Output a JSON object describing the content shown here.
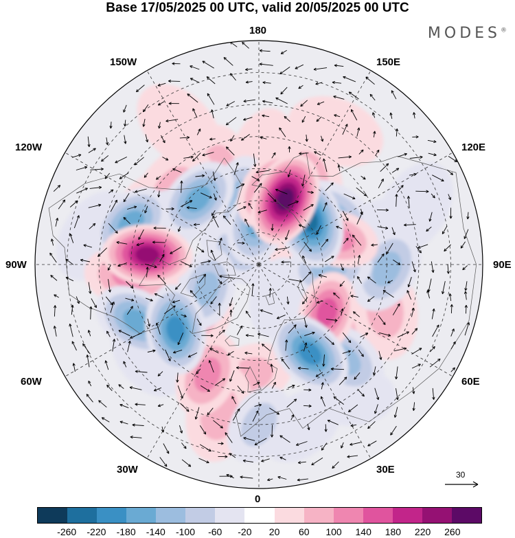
{
  "title": "Base 17/05/2025 00 UTC, valid 20/05/2025 00 UTC",
  "brand": {
    "name": "MODES",
    "mark": "®"
  },
  "longitude_labels": {
    "deg180": "180",
    "deg150w": "150W",
    "deg150e": "150E",
    "deg120w": "120W",
    "deg120e": "120E",
    "deg90w": "90W",
    "deg90e": "90E",
    "deg60w": "60W",
    "deg60e": "60E",
    "deg30w": "30W",
    "deg30e": "30E",
    "deg0": "0"
  },
  "vector_scale": {
    "label": "30"
  },
  "colorbar": {
    "colors": [
      "#0e3a5a",
      "#1e6f9e",
      "#3a90c4",
      "#6aaad3",
      "#9cbddf",
      "#c2cce5",
      "#e4e4f1",
      "#ffffff",
      "#fbdbe0",
      "#f6b3c5",
      "#ef86b0",
      "#e0549e",
      "#c2258a",
      "#951173",
      "#5c0a66"
    ],
    "ticks": [
      "-260",
      "-220",
      "-180",
      "-140",
      "-100",
      "-60",
      "-20",
      "20",
      "60",
      "100",
      "140",
      "180",
      "220",
      "260"
    ]
  },
  "anomalies": [
    {
      "lat": 77,
      "lon": -178,
      "v": -140,
      "r": 0.9
    },
    {
      "lat": 70,
      "lon": 175,
      "v": -60,
      "r": 1.1
    },
    {
      "lat": 68,
      "lon": -165,
      "v": -100,
      "r": 0.8
    },
    {
      "lat": 74,
      "lon": -158,
      "v": -20,
      "r": 1.2
    },
    {
      "lat": 68,
      "lon": 158,
      "v": 260,
      "r": 1.1
    },
    {
      "lat": 66,
      "lon": 170,
      "v": 140,
      "r": 0.9
    },
    {
      "lat": 69,
      "lon": 132,
      "v": -220,
      "r": 1.2
    },
    {
      "lat": 62,
      "lon": 123,
      "v": -100,
      "r": 1.0
    },
    {
      "lat": 58,
      "lon": -157,
      "v": 60,
      "r": 1.0
    },
    {
      "lat": 55,
      "lon": 178,
      "v": 20,
      "r": 1.0
    },
    {
      "lat": 58,
      "lon": 150,
      "v": 60,
      "r": 1.0
    },
    {
      "lat": 55,
      "lon": -130,
      "v": 60,
      "r": 1.3
    },
    {
      "lat": 52,
      "lon": -118,
      "v": 20,
      "r": 1.0
    },
    {
      "lat": 58,
      "lon": -115,
      "v": -100,
      "r": 1.0
    },
    {
      "lat": 62,
      "lon": -137,
      "v": -160,
      "r": 0.9
    },
    {
      "lat": 48,
      "lon": -108,
      "v": -140,
      "r": 0.9
    },
    {
      "lat": 55,
      "lon": -95,
      "v": 240,
      "r": 1.0
    },
    {
      "lat": 50,
      "lon": -85,
      "v": 120,
      "r": 1.1
    },
    {
      "lat": 63,
      "lon": -82,
      "v": -20,
      "r": 0.8
    },
    {
      "lat": 72,
      "lon": -65,
      "v": -100,
      "r": 0.8
    },
    {
      "lat": 66,
      "lon": -48,
      "v": 60,
      "r": 0.8
    },
    {
      "lat": 48,
      "lon": -65,
      "v": -140,
      "r": 1.0
    },
    {
      "lat": 57,
      "lon": -52,
      "v": -180,
      "r": 1.0
    },
    {
      "lat": 45,
      "lon": -50,
      "v": -20,
      "r": 1.0
    },
    {
      "lat": 52,
      "lon": -25,
      "v": 120,
      "r": 0.9
    },
    {
      "lat": 55,
      "lon": -5,
      "v": 60,
      "r": 1.0
    },
    {
      "lat": 42,
      "lon": -15,
      "v": 60,
      "r": 1.2
    },
    {
      "lat": 40,
      "lon": 0,
      "v": -60,
      "r": 0.8
    },
    {
      "lat": 38,
      "lon": 15,
      "v": -20,
      "r": 1.0
    },
    {
      "lat": 58,
      "lon": 30,
      "v": -180,
      "r": 1.0
    },
    {
      "lat": 50,
      "lon": 42,
      "v": -100,
      "r": 1.0
    },
    {
      "lat": 40,
      "lon": 35,
      "v": -20,
      "r": 1.0
    },
    {
      "lat": 64,
      "lon": 55,
      "v": 140,
      "r": 0.8
    },
    {
      "lat": 55,
      "lon": 58,
      "v": 60,
      "r": 1.1
    },
    {
      "lat": 48,
      "lon": 70,
      "v": 60,
      "r": 1.2
    },
    {
      "lat": 50,
      "lon": 88,
      "v": -100,
      "r": 1.0
    },
    {
      "lat": 52,
      "lon": 105,
      "v": -20,
      "r": 1.1
    },
    {
      "lat": 68,
      "lon": 87,
      "v": -100,
      "r": 0.9
    },
    {
      "lat": 64,
      "lon": 108,
      "v": 100,
      "r": 0.8
    },
    {
      "lat": 72,
      "lon": 118,
      "v": 60,
      "r": 0.8
    },
    {
      "lat": 80,
      "lon": 80,
      "v": 20,
      "r": 0.8
    },
    {
      "lat": 82,
      "lon": -120,
      "v": -60,
      "r": 0.7
    },
    {
      "lat": 78,
      "lon": 30,
      "v": -20,
      "r": 0.8
    },
    {
      "lat": 40,
      "lon": -150,
      "v": 20,
      "r": 1.2
    },
    {
      "lat": 42,
      "lon": 150,
      "v": 20,
      "r": 1.2
    },
    {
      "lat": 38,
      "lon": 110,
      "v": -20,
      "r": 1.2
    },
    {
      "lat": 38,
      "lon": -100,
      "v": -20,
      "r": 1.2
    }
  ]
}
